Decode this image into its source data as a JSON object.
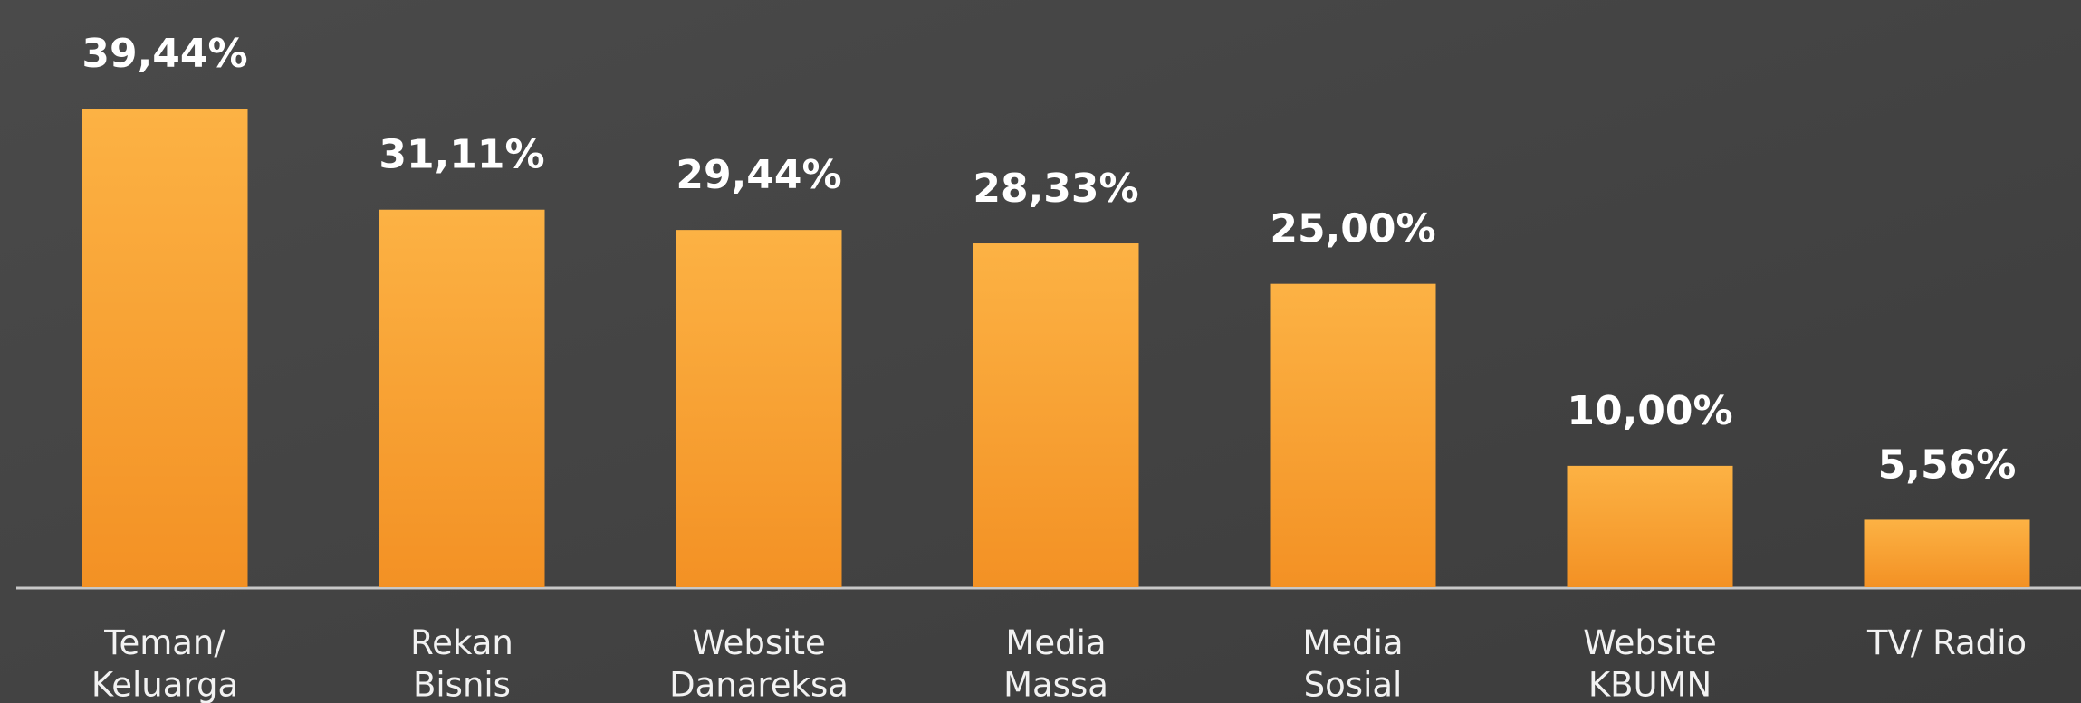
{
  "chart_data": {
    "type": "bar",
    "categories": [
      "Teman/\nKeluarga",
      "Rekan\nBisnis",
      "Website\nDanareksa",
      "Media\nMassa",
      "Media\nSosial",
      "Website\nKBUMN",
      "TV/ Radio"
    ],
    "values": [
      39.44,
      31.11,
      29.44,
      28.33,
      25.0,
      10.0,
      5.56
    ],
    "value_labels": [
      "39,44%",
      "31,11%",
      "29,44%",
      "28,33%",
      "25,00%",
      "10,00%",
      "5,56%"
    ],
    "color": "#f7a233"
  }
}
